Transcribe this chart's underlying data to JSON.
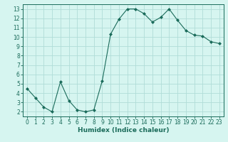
{
  "x": [
    0,
    1,
    2,
    3,
    4,
    5,
    6,
    7,
    8,
    9,
    10,
    11,
    12,
    13,
    14,
    15,
    16,
    17,
    18,
    19,
    20,
    21,
    22,
    23
  ],
  "y": [
    4.5,
    3.5,
    2.5,
    2.0,
    5.2,
    3.2,
    2.2,
    2.0,
    2.2,
    5.3,
    10.3,
    11.9,
    13.0,
    13.0,
    12.5,
    11.6,
    12.1,
    13.0,
    11.8,
    10.7,
    10.2,
    10.1,
    9.5,
    9.3
  ],
  "line_color": "#1a6b5a",
  "marker": "D",
  "marker_size": 2.0,
  "bg_color": "#d6f5f0",
  "grid_color": "#b0ddd8",
  "xlabel": "Humidex (Indice chaleur)",
  "ylim": [
    1.5,
    13.5
  ],
  "xlim": [
    -0.5,
    23.5
  ],
  "yticks": [
    2,
    3,
    4,
    5,
    6,
    7,
    8,
    9,
    10,
    11,
    12,
    13
  ],
  "xticks": [
    0,
    1,
    2,
    3,
    4,
    5,
    6,
    7,
    8,
    9,
    10,
    11,
    12,
    13,
    14,
    15,
    16,
    17,
    18,
    19,
    20,
    21,
    22,
    23
  ],
  "tick_color": "#1a6b5a",
  "label_fontsize": 6.5,
  "tick_fontsize": 5.5,
  "spine_color": "#1a6b5a"
}
